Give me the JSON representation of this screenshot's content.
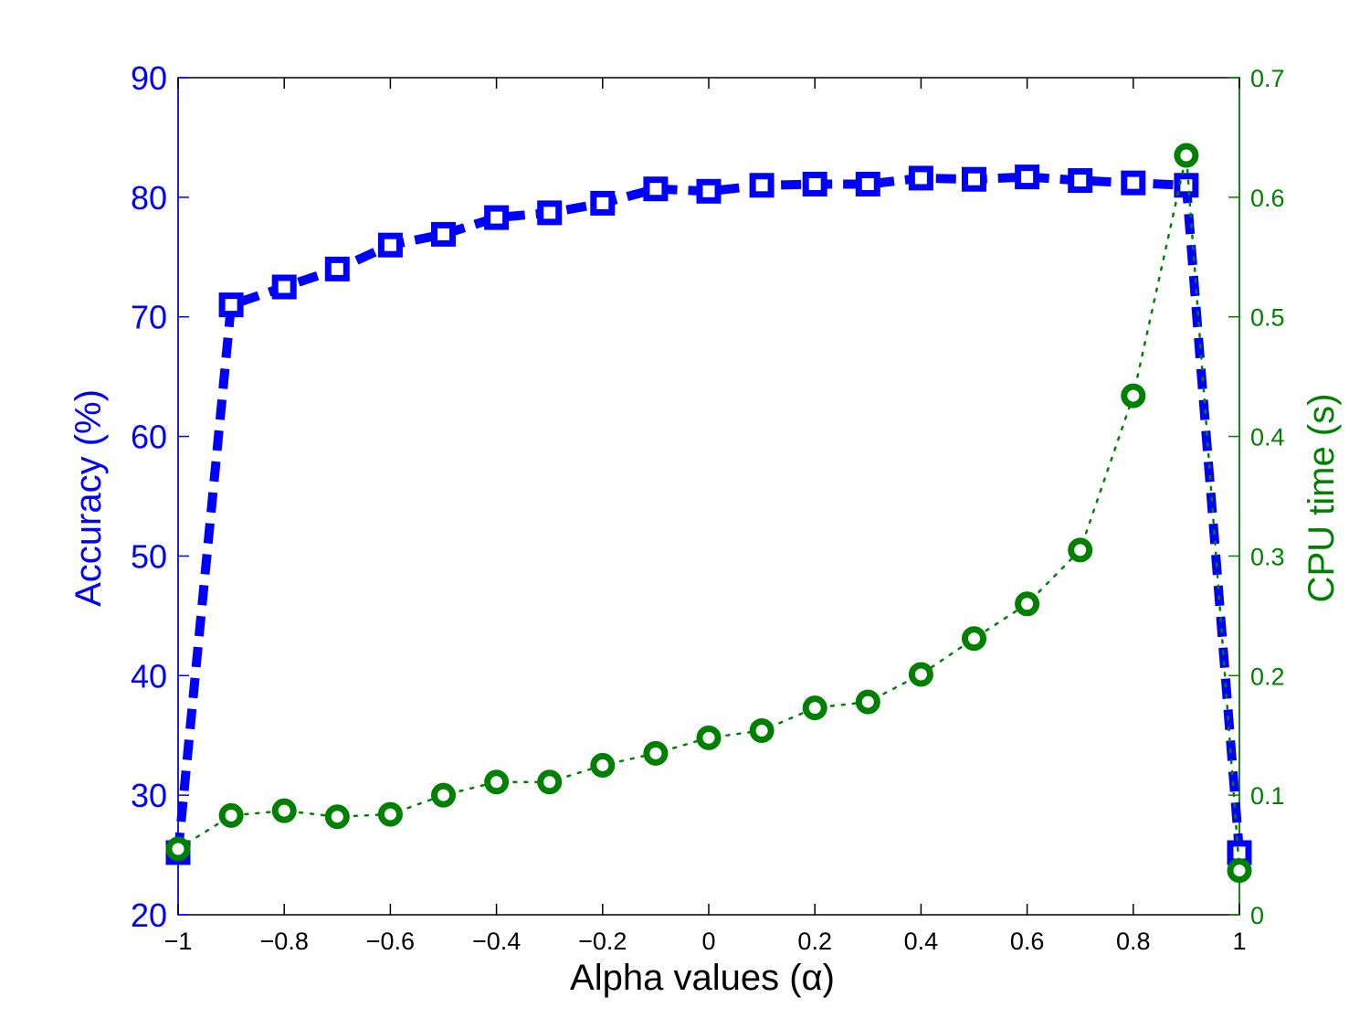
{
  "chart_data": {
    "type": "line",
    "xlabel": "Alpha values (α)",
    "ylabel_left": "Accuracy (%)",
    "ylabel_right": "CPU time (s)",
    "xlim": [
      -1,
      1
    ],
    "ylim_left": [
      20,
      90
    ],
    "ylim_right": [
      0,
      0.7
    ],
    "x_ticks": [
      "−1",
      "−0.8",
      "−0.6",
      "−0.4",
      "−0.2",
      "0",
      "0.2",
      "0.4",
      "0.6",
      "0.8",
      "1"
    ],
    "y_left_ticks": [
      "20",
      "30",
      "40",
      "50",
      "60",
      "70",
      "80",
      "90"
    ],
    "y_right_ticks": [
      "0",
      "0.1",
      "0.2",
      "0.3",
      "0.4",
      "0.5",
      "0.6",
      "0.7"
    ],
    "grid": false,
    "x": [
      -1,
      -0.9,
      -0.8,
      -0.7,
      -0.6,
      -0.5,
      -0.4,
      -0.3,
      -0.2,
      -0.1,
      0,
      0.1,
      0.2,
      0.3,
      0.4,
      0.5,
      0.6,
      0.7,
      0.8,
      0.9,
      1
    ],
    "series": [
      {
        "axis": "left",
        "color": "#0000ff",
        "marker": "square",
        "line": "dashed",
        "values": [
          25.2,
          71.0,
          72.5,
          74.0,
          76.0,
          76.9,
          78.3,
          78.7,
          79.5,
          80.7,
          80.5,
          81.0,
          81.1,
          81.1,
          81.6,
          81.5,
          81.7,
          81.4,
          81.2,
          81.0,
          25.2
        ]
      },
      {
        "axis": "right",
        "color": "#008000",
        "marker": "circle",
        "line": "dotted",
        "values": [
          0.055,
          0.083,
          0.087,
          0.082,
          0.084,
          0.1,
          0.111,
          0.111,
          0.125,
          0.135,
          0.148,
          0.154,
          0.173,
          0.178,
          0.201,
          0.231,
          0.26,
          0.305,
          0.434,
          0.635,
          0.037
        ]
      }
    ],
    "colors": {
      "left_axis": "#0000ff",
      "right_axis": "#008000",
      "x_axis": "#000000"
    }
  }
}
